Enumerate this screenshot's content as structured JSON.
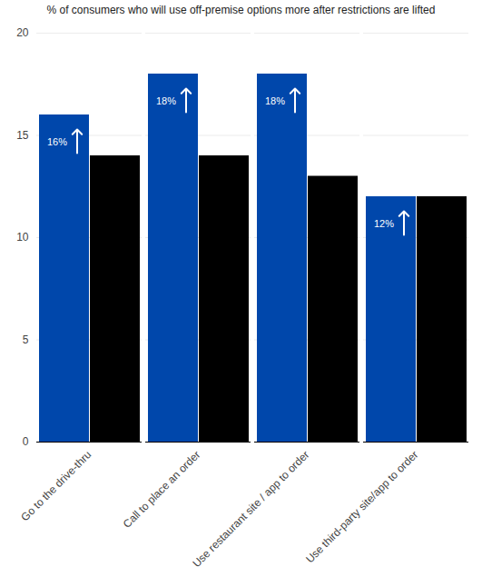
{
  "chart_data": {
    "type": "bar",
    "title": "% of consumers who will use off-premise options more after restrictions are lifted",
    "categories": [
      "Go to the drive-thru",
      "Call to place an order",
      "Use restaurant site / app to order",
      "Use third-party site/app to order"
    ],
    "series": [
      {
        "color": "#0047ab",
        "values": [
          16,
          18,
          18,
          12
        ],
        "value_labels": [
          "16%",
          "18%",
          "18%",
          "12%"
        ],
        "data_labels": true
      },
      {
        "color": "#000000",
        "values": [
          14,
          14,
          13,
          12
        ],
        "data_labels": false
      }
    ],
    "ylim": [
      0,
      20
    ],
    "yticks": [
      0,
      5,
      10,
      15,
      20
    ],
    "grid": true
  }
}
